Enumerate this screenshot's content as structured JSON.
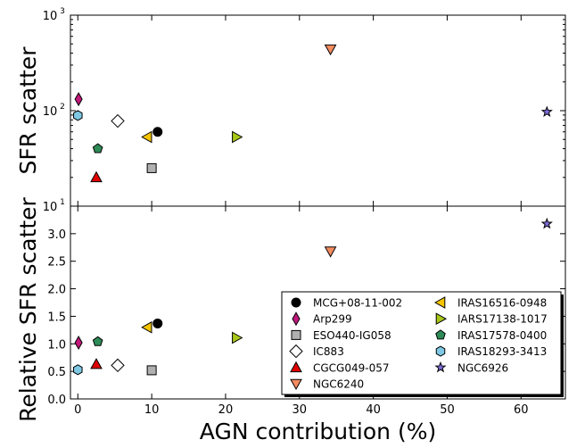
{
  "chart_data": [
    {
      "type": "scatter",
      "panel": "top",
      "ylabel": "SFR scatter",
      "yscale": "log",
      "ylim": [
        10,
        1000
      ],
      "xlim": [
        -1,
        66
      ],
      "y_ticks": [
        {
          "value": 10,
          "base": "10",
          "exp": "1"
        },
        {
          "value": 100,
          "base": "10",
          "exp": "2"
        },
        {
          "value": 1000,
          "base": "10",
          "exp": "3"
        }
      ],
      "series": [
        {
          "name": "MCG+08-11-002",
          "marker": "circle",
          "color": "#000000",
          "x": 10.8,
          "y": 60
        },
        {
          "name": "Arp299",
          "marker": "thin-diamond",
          "color": "#c0187a",
          "x": 0.1,
          "y": 132
        },
        {
          "name": "ESO440-IG058",
          "marker": "square",
          "color": "#b0b0b0",
          "x": 10.0,
          "y": 25
        },
        {
          "name": "IC883",
          "marker": "diamond",
          "color": "#ffffff",
          "x": 5.4,
          "y": 78
        },
        {
          "name": "CGCG049-057",
          "marker": "triangle-up",
          "color": "#e00000",
          "x": 2.5,
          "y": 20
        },
        {
          "name": "NGC6240",
          "marker": "triangle-down",
          "color": "#f48c60",
          "x": 34.2,
          "y": 440
        },
        {
          "name": "IRAS16516-0948",
          "marker": "triangle-left",
          "color": "#f4c400",
          "x": 9.4,
          "y": 53
        },
        {
          "name": "IARS17138-1017",
          "marker": "triangle-right",
          "color": "#a8c818",
          "x": 21.5,
          "y": 53
        },
        {
          "name": "IRAS17578-0400",
          "marker": "pentagon",
          "color": "#2e8b57",
          "x": 2.7,
          "y": 40
        },
        {
          "name": "IRAS18293-3413",
          "marker": "hexagon",
          "color": "#7ec8e3",
          "x": 0.0,
          "y": 89
        },
        {
          "name": "NGC6926",
          "marker": "star",
          "color": "#7e6bd8",
          "x": 63.5,
          "y": 97
        }
      ]
    },
    {
      "type": "scatter",
      "panel": "bottom",
      "xlabel": "AGN contribution (%)",
      "ylabel": "Relative SFR scatter",
      "ylim": [
        0.0,
        3.5
      ],
      "xlim": [
        -1,
        66
      ],
      "x_ticks": [
        "0",
        "10",
        "20",
        "30",
        "40",
        "50",
        "60"
      ],
      "y_ticks": [
        "0.0",
        "0.5",
        "1.0",
        "1.5",
        "2.0",
        "2.5",
        "3.0"
      ],
      "legend_position": "lower-right",
      "series": [
        {
          "name": "MCG+08-11-002",
          "marker": "circle",
          "color": "#000000",
          "x": 10.8,
          "y": 1.37
        },
        {
          "name": "Arp299",
          "marker": "thin-diamond",
          "color": "#c0187a",
          "x": 0.1,
          "y": 1.02
        },
        {
          "name": "ESO440-IG058",
          "marker": "square",
          "color": "#b0b0b0",
          "x": 10.0,
          "y": 0.52
        },
        {
          "name": "IC883",
          "marker": "diamond",
          "color": "#ffffff",
          "x": 5.4,
          "y": 0.61
        },
        {
          "name": "CGCG049-057",
          "marker": "triangle-up",
          "color": "#e00000",
          "x": 2.5,
          "y": 0.63
        },
        {
          "name": "NGC6240",
          "marker": "triangle-down",
          "color": "#f48c60",
          "x": 34.2,
          "y": 2.68
        },
        {
          "name": "IRAS16516-0948",
          "marker": "triangle-left",
          "color": "#f4c400",
          "x": 9.4,
          "y": 1.3
        },
        {
          "name": "IARS17138-1017",
          "marker": "triangle-right",
          "color": "#a8c818",
          "x": 21.5,
          "y": 1.11
        },
        {
          "name": "IRAS17578-0400",
          "marker": "pentagon",
          "color": "#2e8b57",
          "x": 2.7,
          "y": 1.04
        },
        {
          "name": "IRAS18293-3413",
          "marker": "hexagon",
          "color": "#7ec8e3",
          "x": 0.0,
          "y": 0.53
        },
        {
          "name": "NGC6926",
          "marker": "star",
          "color": "#7e6bd8",
          "x": 63.5,
          "y": 3.18
        }
      ]
    }
  ]
}
